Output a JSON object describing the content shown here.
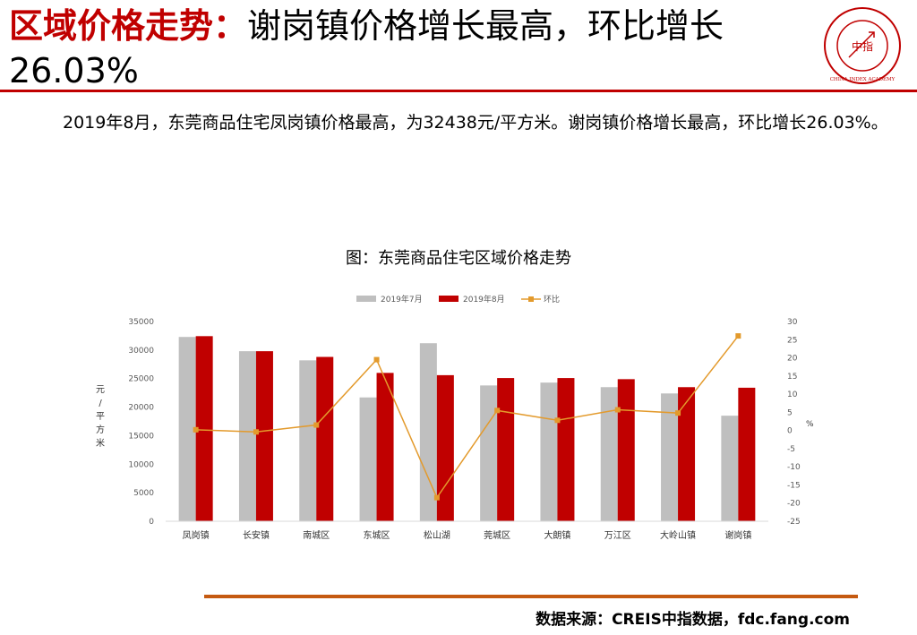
{
  "header": {
    "title_keyword": "区域价格走势",
    "title_separator": "：",
    "title_rest": "谢岗镇价格增长最高，环比增长26.03%",
    "logo_text": "中指",
    "logo_ring_text": "CHINA INDEX ACADEMY"
  },
  "body": {
    "paragraph": "2019年8月，东莞商品住宅凤岗镇价格最高，为32438元/平方米。谢岗镇价格增长最高，环比增长26.03%。"
  },
  "chart_data": {
    "type": "bar",
    "title": "图：东莞商品住宅区域价格走势",
    "categories": [
      "凤岗镇",
      "长安镇",
      "南城区",
      "东城区",
      "松山湖",
      "莞城区",
      "大朗镇",
      "万江区",
      "大岭山镇",
      "谢岗镇"
    ],
    "series": [
      {
        "name": "2019年7月",
        "type": "bar",
        "axis": "left",
        "color": "#bfbfbf",
        "values": [
          32300,
          29800,
          28200,
          21700,
          31200,
          23800,
          24300,
          23500,
          22400,
          18500
        ]
      },
      {
        "name": "2019年8月",
        "type": "bar",
        "axis": "left",
        "color": "#c00000",
        "values": [
          32438,
          29800,
          28800,
          26000,
          25600,
          25100,
          25100,
          24900,
          23500,
          23400
        ]
      },
      {
        "name": "环比",
        "type": "line",
        "axis": "right",
        "color": "#e39a2c",
        "values": [
          0.2,
          -0.4,
          1.5,
          19.5,
          -18.5,
          5.5,
          2.8,
          5.7,
          4.8,
          26.03
        ]
      }
    ],
    "ylabel": "元/平方米",
    "y2label": "%",
    "ylim": [
      0,
      35000
    ],
    "yticks": [
      0,
      5000,
      10000,
      15000,
      20000,
      25000,
      30000,
      35000
    ],
    "y2lim": [
      -25,
      30
    ],
    "y2ticks": [
      -25,
      -20,
      -15,
      -10,
      -5,
      0,
      5,
      10,
      15,
      20,
      25,
      30
    ],
    "legend_position": "top",
    "grid": false
  },
  "footer": {
    "source": "数据来源：CREIS中指数据，fdc.fang.com"
  }
}
